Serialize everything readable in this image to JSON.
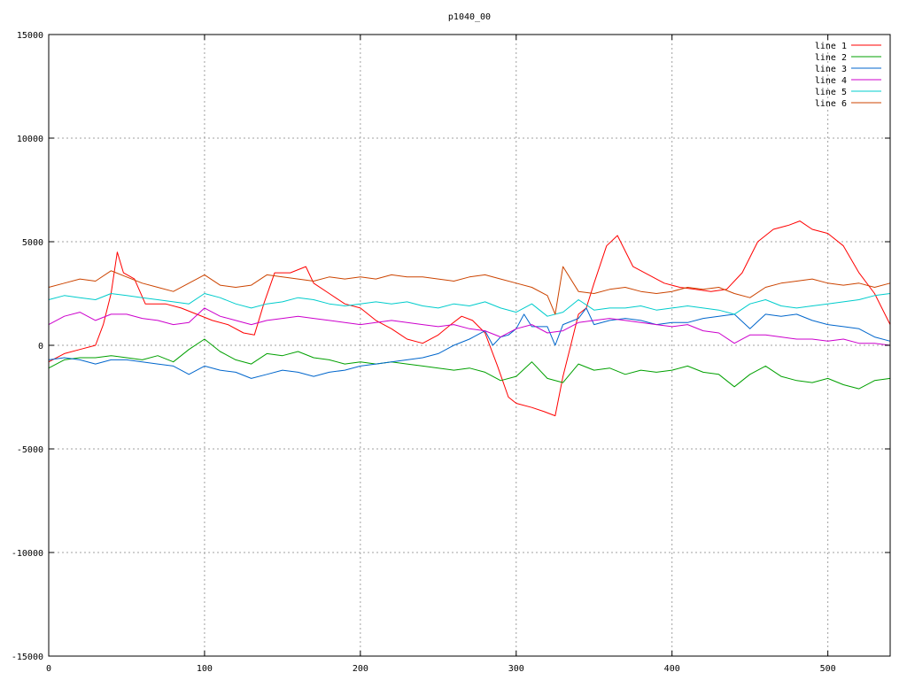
{
  "chart_data": {
    "type": "line",
    "title": "p1040_00",
    "xlabel": "",
    "ylabel": "",
    "xlim": [
      0,
      540
    ],
    "ylim": [
      -15000,
      15000
    ],
    "xticks": [
      0,
      100,
      200,
      300,
      400,
      500
    ],
    "yticks": [
      -15000,
      -10000,
      -5000,
      0,
      5000,
      10000,
      15000
    ],
    "grid": true,
    "legend_position": "top-right",
    "series": [
      {
        "name": "line 1",
        "color": "#ff0000",
        "x": [
          0,
          10,
          20,
          30,
          35,
          40,
          44,
          48,
          55,
          62,
          68,
          75,
          85,
          95,
          105,
          115,
          125,
          132,
          138,
          145,
          155,
          165,
          170,
          180,
          190,
          200,
          210,
          220,
          230,
          240,
          250,
          258,
          265,
          272,
          280,
          288,
          295,
          300,
          310,
          318,
          325,
          330,
          335,
          340,
          345,
          350,
          358,
          365,
          375,
          385,
          395,
          405,
          415,
          425,
          435,
          445,
          455,
          465,
          475,
          482,
          490,
          500,
          510,
          520,
          530,
          540
        ],
        "y": [
          -800,
          -400,
          -200,
          0,
          1000,
          2500,
          4500,
          3500,
          3200,
          2000,
          2000,
          2000,
          1800,
          1500,
          1200,
          1000,
          600,
          500,
          2000,
          3500,
          3500,
          3800,
          3000,
          2500,
          2000,
          1800,
          1200,
          800,
          300,
          100,
          500,
          1000,
          1400,
          1200,
          600,
          -1000,
          -2500,
          -2800,
          -3000,
          -3200,
          -3400,
          -1500,
          0,
          1500,
          1800,
          3000,
          4800,
          5300,
          3800,
          3400,
          3000,
          2800,
          2700,
          2600,
          2700,
          3500,
          5000,
          5600,
          5800,
          6000,
          5600,
          5400,
          4800,
          3500,
          2500,
          1000
        ]
      },
      {
        "name": "line 2",
        "color": "#00a000",
        "x": [
          0,
          10,
          20,
          30,
          40,
          50,
          60,
          70,
          80,
          90,
          100,
          110,
          120,
          130,
          140,
          150,
          160,
          170,
          180,
          190,
          200,
          210,
          220,
          230,
          240,
          250,
          260,
          270,
          280,
          290,
          300,
          310,
          320,
          330,
          340,
          350,
          360,
          370,
          380,
          390,
          400,
          410,
          420,
          430,
          440,
          450,
          460,
          470,
          480,
          490,
          500,
          510,
          520,
          530,
          540
        ],
        "y": [
          -1100,
          -700,
          -600,
          -600,
          -500,
          -600,
          -700,
          -500,
          -800,
          -200,
          300,
          -300,
          -700,
          -900,
          -400,
          -500,
          -300,
          -600,
          -700,
          -900,
          -800,
          -900,
          -800,
          -900,
          -1000,
          -1100,
          -1200,
          -1100,
          -1300,
          -1700,
          -1500,
          -800,
          -1600,
          -1800,
          -900,
          -1200,
          -1100,
          -1400,
          -1200,
          -1300,
          -1200,
          -1000,
          -1300,
          -1400,
          -2000,
          -1400,
          -1000,
          -1500,
          -1700,
          -1800,
          -1600,
          -1900,
          -2100,
          -1700,
          -1600
        ]
      },
      {
        "name": "line 3",
        "color": "#0066cc",
        "x": [
          0,
          10,
          20,
          30,
          40,
          50,
          60,
          70,
          80,
          90,
          100,
          110,
          120,
          130,
          140,
          150,
          160,
          170,
          180,
          190,
          200,
          210,
          220,
          230,
          240,
          250,
          260,
          270,
          280,
          285,
          290,
          295,
          300,
          305,
          310,
          320,
          325,
          330,
          340,
          345,
          350,
          360,
          370,
          380,
          390,
          400,
          410,
          420,
          430,
          440,
          450,
          460,
          470,
          480,
          490,
          500,
          510,
          520,
          530,
          540
        ],
        "y": [
          -700,
          -600,
          -700,
          -900,
          -700,
          -700,
          -800,
          -900,
          -1000,
          -1400,
          -1000,
          -1200,
          -1300,
          -1600,
          -1400,
          -1200,
          -1300,
          -1500,
          -1300,
          -1200,
          -1000,
          -900,
          -800,
          -700,
          -600,
          -400,
          0,
          300,
          700,
          0,
          400,
          500,
          800,
          1500,
          900,
          900,
          0,
          1000,
          1300,
          1800,
          1000,
          1200,
          1300,
          1200,
          1000,
          1100,
          1100,
          1300,
          1400,
          1500,
          800,
          1500,
          1400,
          1500,
          1200,
          1000,
          900,
          800,
          400,
          200
        ]
      },
      {
        "name": "line 4",
        "color": "#cc00cc",
        "x": [
          0,
          10,
          20,
          30,
          40,
          50,
          60,
          70,
          80,
          90,
          100,
          110,
          120,
          130,
          140,
          150,
          160,
          170,
          180,
          190,
          200,
          210,
          220,
          230,
          240,
          250,
          260,
          270,
          280,
          290,
          300,
          310,
          320,
          330,
          340,
          350,
          360,
          370,
          380,
          390,
          400,
          410,
          420,
          430,
          440,
          450,
          460,
          470,
          480,
          490,
          500,
          510,
          520,
          530,
          540
        ],
        "y": [
          1000,
          1400,
          1600,
          1200,
          1500,
          1500,
          1300,
          1200,
          1000,
          1100,
          1800,
          1400,
          1200,
          1000,
          1200,
          1300,
          1400,
          1300,
          1200,
          1100,
          1000,
          1100,
          1200,
          1100,
          1000,
          900,
          1000,
          800,
          700,
          400,
          800,
          1000,
          600,
          700,
          1100,
          1200,
          1300,
          1200,
          1100,
          1000,
          900,
          1000,
          700,
          600,
          100,
          500,
          500,
          400,
          300,
          300,
          200,
          300,
          100,
          100,
          0
        ]
      },
      {
        "name": "line 5",
        "color": "#00cccc",
        "x": [
          0,
          10,
          20,
          30,
          40,
          50,
          60,
          70,
          80,
          90,
          100,
          110,
          120,
          130,
          140,
          150,
          160,
          170,
          180,
          190,
          200,
          210,
          220,
          230,
          240,
          250,
          260,
          270,
          280,
          290,
          300,
          310,
          320,
          330,
          340,
          350,
          360,
          370,
          380,
          390,
          400,
          410,
          420,
          430,
          440,
          450,
          460,
          470,
          480,
          490,
          500,
          510,
          520,
          530,
          540
        ],
        "y": [
          2200,
          2400,
          2300,
          2200,
          2500,
          2400,
          2300,
          2200,
          2100,
          2000,
          2500,
          2300,
          2000,
          1800,
          2000,
          2100,
          2300,
          2200,
          2000,
          1900,
          2000,
          2100,
          2000,
          2100,
          1900,
          1800,
          2000,
          1900,
          2100,
          1800,
          1600,
          2000,
          1400,
          1600,
          2200,
          1700,
          1800,
          1800,
          1900,
          1700,
          1800,
          1900,
          1800,
          1700,
          1500,
          2000,
          2200,
          1900,
          1800,
          1900,
          2000,
          2100,
          2200,
          2400,
          2500
        ]
      },
      {
        "name": "line 6",
        "color": "#cc4400",
        "x": [
          0,
          10,
          20,
          30,
          40,
          50,
          60,
          70,
          80,
          90,
          100,
          110,
          120,
          130,
          140,
          150,
          160,
          170,
          180,
          190,
          200,
          210,
          220,
          230,
          240,
          250,
          260,
          270,
          280,
          290,
          300,
          310,
          320,
          325,
          330,
          340,
          350,
          360,
          370,
          380,
          390,
          400,
          410,
          420,
          430,
          440,
          450,
          460,
          470,
          480,
          490,
          500,
          510,
          520,
          530,
          540
        ],
        "y": [
          2800,
          3000,
          3200,
          3100,
          3600,
          3300,
          3000,
          2800,
          2600,
          3000,
          3400,
          2900,
          2800,
          2900,
          3400,
          3300,
          3200,
          3100,
          3300,
          3200,
          3300,
          3200,
          3400,
          3300,
          3300,
          3200,
          3100,
          3300,
          3400,
          3200,
          3000,
          2800,
          2400,
          1500,
          3800,
          2600,
          2500,
          2700,
          2800,
          2600,
          2500,
          2600,
          2800,
          2700,
          2800,
          2500,
          2300,
          2800,
          3000,
          3100,
          3200,
          3000,
          2900,
          3000,
          2800,
          3000
        ]
      }
    ]
  }
}
